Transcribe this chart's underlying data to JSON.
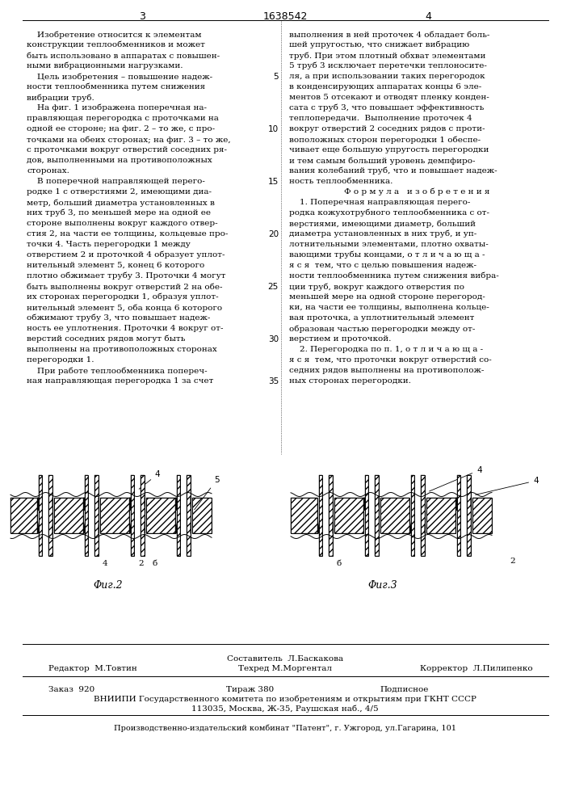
{
  "page_num_left": "3",
  "patent_num": "1638542",
  "page_num_right": "4",
  "bg_color": "#ffffff",
  "text_color": "#000000",
  "left_column_text": [
    "    Изобретение относится к элементам",
    "конструкции теплообменников и может",
    "быть использовано в аппаратах с повышен-",
    "ными вибрационными нагрузками.",
    "    Цель изобретения – повышение надеж-",
    "ности теплообменника путем снижения",
    "вибрации труб.",
    "    На фиг. 1 изображена поперечная на-",
    "правляющая перегородка с проточками на",
    "одной ее стороне; на фиг. 2 – то же, с про-",
    "точками на обеих сторонах; на фиг. 3 – то же,",
    "с проточками вокруг отверстий соседних ря-",
    "дов, выполненными на противоположных",
    "сторонах.",
    "    В поперечной направляющей перего-",
    "родке 1 с отверстиями 2, имеющими диа-",
    "метр, больший диаметра установленных в",
    "них труб 3, по меньшей мере на одной ее",
    "стороне выполнены вокруг каждого отвер-",
    "стия 2, на части ее толщины, кольцевые про-",
    "точки 4. Часть перегородки 1 между",
    "отверстием 2 и проточкой 4 образует уплот-",
    "нительный элемент 5, конец 6 которого",
    "плотно обжимает трубу 3. Проточки 4 могут",
    "быть выполнены вокруг отверстий 2 на обе-",
    "их сторонах перегородки 1, образуя уплот-",
    "нительный элемент 5, оба конца 6 которого",
    "обжимают трубу 3, что повышает надеж-",
    "ность ее уплотнения. Проточки 4 вокруг от-",
    "верстий соседних рядов могут быть",
    "выполнены на противоположных сторонах",
    "перегородки 1.",
    "    При работе теплообменника попереч-",
    "ная направляющая перегородка 1 за счет"
  ],
  "right_column_text": [
    "выполнения в ней проточек 4 обладает боль-",
    "шей упругостью, что снижает вибрацию",
    "труб. При этом плотный обхват элементами",
    "5 труб 3 исключает перетечки теплоносите-",
    "ля, а при использовании таких перегородок",
    "в конденсирующих аппаратах концы 6 эле-",
    "ментов 5 отсекают и отводят пленку конден-",
    "сата с труб 3, что повышает эффективность",
    "теплопередачи.  Выполнение проточек 4",
    "вокруг отверстий 2 соседних рядов с проти-",
    "воположных сторон перегородки 1 обеспе-",
    "чивает еще большую упругость перегородки",
    "и тем самым больший уровень демпфиро-",
    "вания колебаний труб, что и повышает надеж-",
    "ность теплообменника.",
    "Ф о р м у л а   и з о б р е т е н и я",
    "    1. Поперечная направляющая перего-",
    "родка кожухотрубного теплообменника с от-",
    "верстиями, имеющими диаметр, больший",
    "диаметра установленных в них труб, и уп-",
    "лотнительными элементами, плотно охваты-",
    "вающими трубы концами, о т л и ч а ю щ а -",
    "я с я  тем, что с целью повышения надеж-",
    "ности теплообменника путем снижения вибра-",
    "ции труб, вокруг каждого отверстия по",
    "меньшей мере на одной стороне перегород-",
    "ки, на части ее толщины, выполнена кольце-",
    "вая проточка, а уплотнительный элемент",
    "образован частью перегородки между от-",
    "верстием и проточкой.",
    "    2. Перегородка по п. 1, о т л и ч а ю щ а -",
    "я с я  тем, что проточки вокруг отверстий со-",
    "седних рядов выполнены на противополож-",
    "ных сторонах перегородки."
  ],
  "fig2_label": "Φиг.2",
  "fig3_label": "Φиг.3",
  "footer_line1_left": "Редактор  М.Товтин",
  "footer_line1_center": "Составитель  Л.Баскакова",
  "footer_line2_center": "Техред М.Моргентал",
  "footer_line1_right": "Корректор  Л.Пилипенко",
  "footer_zakaz": "Заказ  920",
  "footer_tirazh": "Тираж 380",
  "footer_podpisnoe": "Подписное",
  "footer_vniiipi": "ВНИИПИ Государственного комитета по изобретениям и открытиям при ГКНТ СССР",
  "footer_address": "113035, Москва, Ж-35, Раушская наб., 4/5",
  "footer_publisher": "Производственно-издательский комбинат \"Патент\", г. Ужгород, ул.Гагарина, 101",
  "line_numbers": [
    "5",
    "10",
    "15",
    "20",
    "25",
    "30",
    "35"
  ]
}
